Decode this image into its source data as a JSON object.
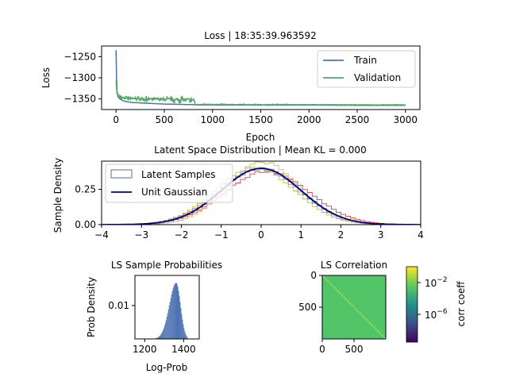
{
  "chart_data": [
    {
      "id": "loss",
      "type": "line",
      "title": "Loss | 18:35:39.963592",
      "xlabel": "Epoch",
      "ylabel": "Loss",
      "xlim": [
        -150,
        3150
      ],
      "ylim": [
        -1375,
        -1225
      ],
      "xticks": [
        0,
        500,
        1000,
        1500,
        2000,
        2500,
        3000
      ],
      "yticks": [
        -1250,
        -1300,
        -1350
      ],
      "legend": {
        "placement": "top-right",
        "entries": [
          "Train",
          "Validation"
        ]
      },
      "series": [
        {
          "name": "Train",
          "color": "#4c72b0",
          "x": [
            0,
            5,
            10,
            20,
            40,
            80,
            150,
            300,
            500,
            700,
            810,
            820,
            1000,
            1500,
            2000,
            2500,
            3000
          ],
          "y": [
            -1235,
            -1300,
            -1330,
            -1345,
            -1350,
            -1355,
            -1358,
            -1360,
            -1362,
            -1363,
            -1363.5,
            -1364,
            -1364,
            -1364.5,
            -1364.5,
            -1365,
            -1365
          ]
        },
        {
          "name": "Validation",
          "color": "#55a868",
          "x": [
            0,
            5,
            10,
            20,
            40,
            80,
            150,
            300,
            500,
            700,
            810,
            820,
            1000,
            1500,
            2000,
            2500,
            3000
          ],
          "y": [
            -1305,
            -1325,
            -1338,
            -1342,
            -1345,
            -1347,
            -1349,
            -1350,
            -1351,
            -1352,
            -1352,
            -1363,
            -1363,
            -1363.5,
            -1363.5,
            -1364,
            -1364
          ]
        }
      ]
    },
    {
      "id": "latent",
      "type": "area",
      "title": "Latent Space Distribution | Mean KL = 0.000",
      "ylabel": "Sample Density",
      "xlim": [
        -4,
        4
      ],
      "ylim": [
        0,
        0.45
      ],
      "xticks": [
        -4,
        -3,
        -2,
        -1,
        0,
        1,
        2,
        3,
        4
      ],
      "yticks": [
        0.0,
        0.25
      ],
      "yticklabels": [
        "0.00",
        "0.25"
      ],
      "legend": {
        "placement": "top-left",
        "entries": [
          "Latent Samples",
          "Unit Gaussian"
        ]
      },
      "series": [
        {
          "name": "Latent Samples",
          "color": "#4c72b0",
          "mean": 0.0,
          "std": 1.0
        },
        {
          "color": "#d62728",
          "mean": 0.15,
          "std": 1.05
        },
        {
          "color": "#bcbd22",
          "mean": -0.15,
          "std": 0.98
        },
        {
          "color": "#c0b070",
          "mean": 0.05,
          "std": 0.9
        },
        {
          "color": "#8c8c8c",
          "mean": -0.05,
          "std": 1.02
        },
        {
          "name": "Unit Gaussian",
          "color": "#000080",
          "mean": 0.0,
          "std": 1.0
        }
      ]
    },
    {
      "id": "logprob",
      "type": "bar",
      "title": "LS Sample Probabilities",
      "xlabel": "Log-Prob",
      "ylabel": "Prob Density",
      "xlim": [
        1150,
        1480
      ],
      "ylim": [
        0,
        0.019
      ],
      "xticks": [
        1200,
        1400
      ],
      "yticks": [
        0.01
      ],
      "yticklabels": [
        "0.01"
      ],
      "color": "#4c72b0",
      "mean": 1362,
      "std": 22,
      "skew_left": 1.6
    },
    {
      "id": "corr",
      "type": "heatmap",
      "title": "LS Correlation",
      "xlim": [
        0,
        1000
      ],
      "ylim": [
        1000,
        0
      ],
      "xticks": [
        0,
        500
      ],
      "yticks": [
        0,
        500
      ],
      "offdiag_color": "#52c569",
      "diag_color": "#b5de2b",
      "colorbar": {
        "label": "corr coeff",
        "ticks": [
          "10^-2",
          "10^-6"
        ]
      }
    }
  ]
}
